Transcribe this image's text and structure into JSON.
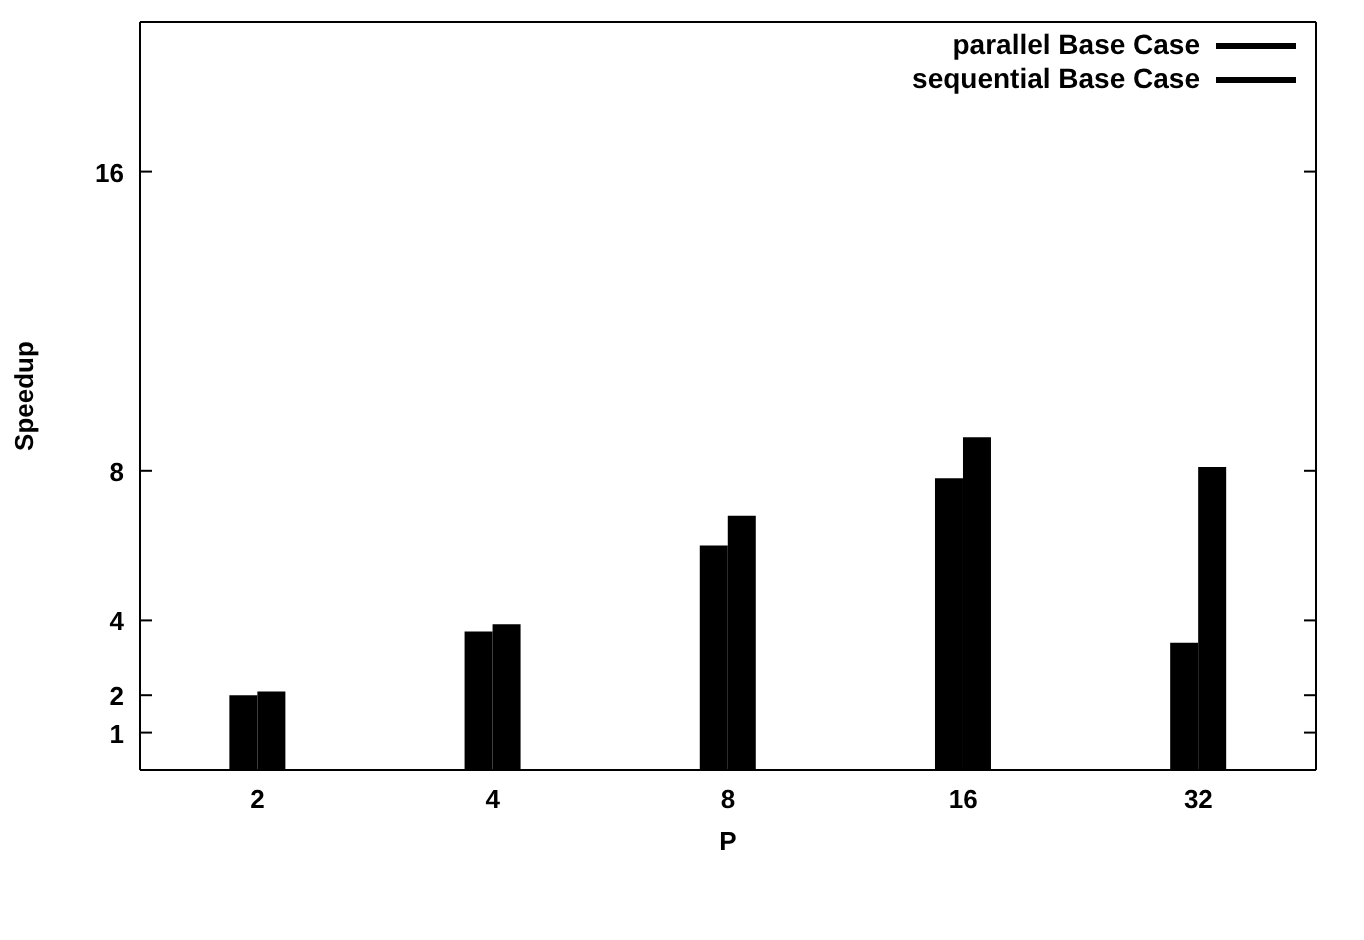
{
  "chart_data": {
    "type": "bar",
    "xlabel": "P",
    "ylabel": "Speedup",
    "categories": [
      "2",
      "4",
      "8",
      "16",
      "32"
    ],
    "series": [
      {
        "name": "parallel Base Case",
        "color": "#000000",
        "values": [
          2.0,
          3.7,
          6.0,
          7.8,
          3.4
        ]
      },
      {
        "name": "sequential Base Case",
        "color": "#000000",
        "values": [
          2.1,
          3.9,
          6.8,
          8.9,
          8.1
        ]
      }
    ],
    "ylim": [
      0,
      20
    ],
    "yticks": [
      1,
      2,
      4,
      8,
      16
    ],
    "grid": false,
    "legend": "top right"
  }
}
